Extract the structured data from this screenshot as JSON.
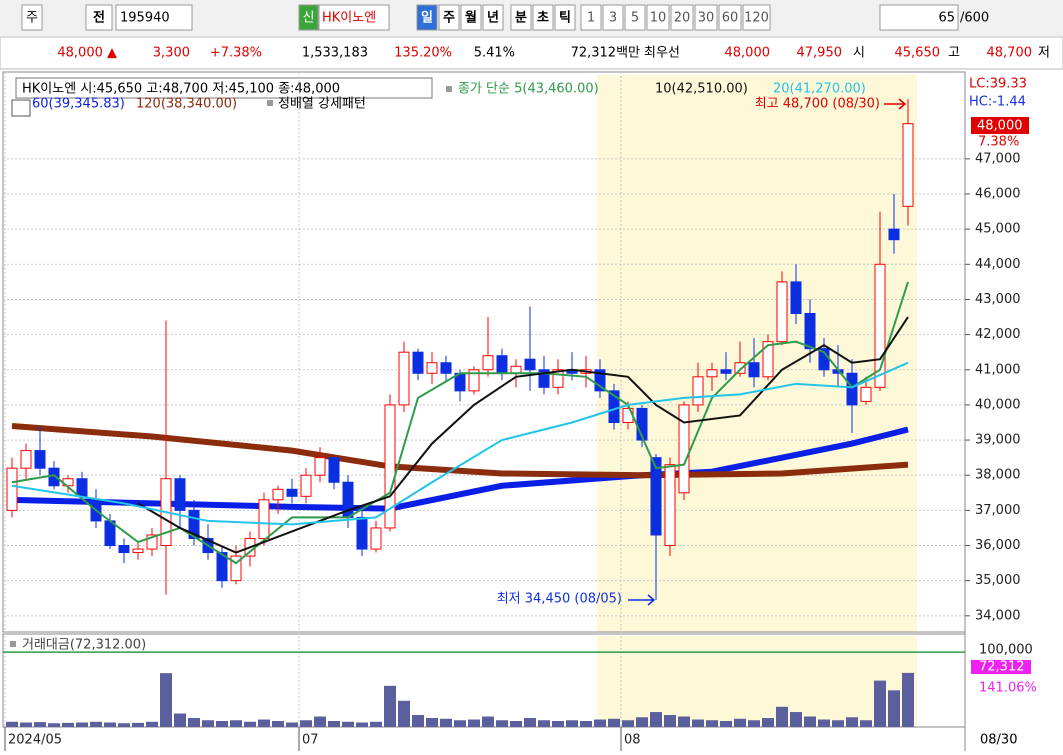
{
  "toolbar": {
    "market": "주",
    "prefix": "전",
    "code": "195940",
    "badge": "신",
    "name": "HK이노엔",
    "periods": [
      "일",
      "주",
      "월",
      "년",
      "분",
      "초",
      "틱"
    ],
    "intervals": [
      "1",
      "3",
      "5",
      "10",
      "20",
      "30",
      "60",
      "120"
    ],
    "count": "65",
    "max": "/600"
  },
  "quote": [
    "48,000 ▲",
    "3,300",
    "+7.38%",
    "1,533,183",
    "135.20%",
    "5.41%",
    "72,312백만",
    "최우선",
    "48,000",
    "47,950",
    "시",
    "45,650",
    "고",
    "48,700",
    "저"
  ],
  "chart_data": {
    "type": "candlestick",
    "info": "HK이노엔 시:45,650 고:48,700 저:45,100 종:48,000",
    "pattern": "정배열 강세패턴",
    "lc": "LC:39.33",
    "hc": "HC:-1.44",
    "last_price": "48,000",
    "last_change": "7.38%",
    "high_note": "최고 48,700 (08/30)",
    "low_note": "최저 34,450 (08/05)",
    "up_color": "#ff0000",
    "down_color": "#0b2fe0",
    "open": [
      37000,
      38200,
      38700,
      38200,
      37700,
      37900,
      37300,
      36700,
      36000,
      35800,
      35900,
      36000,
      37900,
      37000,
      36200,
      35800,
      35000,
      35700,
      36200,
      37300,
      37600,
      37400,
      38000,
      38500,
      37800,
      36800,
      35900,
      36500,
      40000,
      41500,
      40900,
      41200,
      40900,
      40400,
      41000,
      41400,
      40900,
      41300,
      41000,
      40500,
      41000,
      40900,
      41000,
      40400,
      39500,
      39900,
      38500,
      36000,
      37500,
      40000,
      40800,
      41000,
      40900,
      41200,
      40800,
      41800,
      43500,
      42600,
      41600,
      41000,
      40900,
      40100,
      40500,
      45000,
      45650
    ],
    "high": [
      38500,
      38900,
      39400,
      38400,
      38000,
      38100,
      37600,
      36900,
      36200,
      36100,
      36500,
      42400,
      38000,
      37300,
      36600,
      36000,
      36000,
      36400,
      37500,
      37700,
      37900,
      38200,
      38800,
      38500,
      38000,
      37000,
      36700,
      40300,
      41800,
      41600,
      41500,
      41400,
      41000,
      41100,
      42500,
      41600,
      41300,
      42800,
      41400,
      41300,
      41500,
      41400,
      41300,
      40600,
      40100,
      40000,
      38600,
      38500,
      40100,
      41200,
      41200,
      41500,
      41800,
      41900,
      42000,
      43800,
      44000,
      43000,
      41900,
      41700,
      41300,
      40800,
      45500,
      46000,
      48700
    ],
    "low": [
      36800,
      37900,
      38000,
      37600,
      37500,
      37300,
      36500,
      35900,
      35500,
      35600,
      35700,
      34600,
      36500,
      36000,
      35600,
      34800,
      34900,
      35400,
      36000,
      36900,
      37200,
      37200,
      37800,
      37600,
      36500,
      35700,
      35800,
      36400,
      39800,
      40700,
      40600,
      40700,
      40100,
      40300,
      40800,
      40700,
      40500,
      40400,
      40300,
      40300,
      40700,
      40500,
      40200,
      39300,
      39300,
      38800,
      34450,
      35700,
      37300,
      39800,
      40400,
      40700,
      40800,
      40500,
      40700,
      41700,
      42300,
      41200,
      40800,
      40500,
      39200,
      40000,
      40400,
      44300,
      45100
    ],
    "close": [
      38200,
      38700,
      38200,
      37700,
      37900,
      37400,
      36700,
      36000,
      35800,
      35900,
      36300,
      37900,
      37000,
      36200,
      35800,
      35000,
      35700,
      36200,
      37300,
      37600,
      37400,
      38000,
      38500,
      37800,
      36800,
      35900,
      36500,
      40000,
      41500,
      40900,
      41200,
      40900,
      40400,
      41000,
      41400,
      40900,
      41100,
      41000,
      40500,
      41000,
      40900,
      41000,
      40400,
      39500,
      39900,
      39000,
      36300,
      38300,
      40000,
      40800,
      41000,
      40900,
      41200,
      40800,
      41800,
      43500,
      42600,
      41600,
      41000,
      40900,
      40000,
      40500,
      44000,
      44700,
      48000
    ],
    "ma": [
      {
        "name": "종가 단순 5(43,460.00)",
        "color": "#2e9b4a",
        "x": [
          0,
          3,
          6,
          9,
          12,
          16,
          20,
          24,
          27,
          29,
          32,
          35,
          38,
          41,
          44,
          46,
          48,
          50,
          52,
          54,
          56,
          58,
          60,
          62,
          64
        ],
        "values": [
          37800,
          38000,
          37000,
          36100,
          36500,
          35500,
          36800,
          36800,
          37500,
          40200,
          40900,
          40900,
          40900,
          40800,
          40000,
          38200,
          38300,
          40200,
          41000,
          41700,
          41800,
          41500,
          40500,
          41000,
          43500
        ]
      },
      {
        "name": "10(42,510.00)",
        "color": "#111111",
        "x": [
          9,
          12,
          16,
          20,
          24,
          27,
          30,
          33,
          36,
          40,
          44,
          46,
          48,
          52,
          55,
          58,
          60,
          62,
          64
        ],
        "values": [
          37200,
          36500,
          35800,
          36400,
          37000,
          37400,
          38900,
          40000,
          40800,
          41000,
          40800,
          40000,
          39500,
          39700,
          41000,
          41700,
          41200,
          41300,
          42500
        ]
      },
      {
        "name": "20(41,270.00)",
        "color": "#22c4e8",
        "x": [
          0,
          8,
          14,
          20,
          26,
          30,
          35,
          40,
          44,
          48,
          52,
          56,
          60,
          64
        ],
        "values": [
          37700,
          37200,
          36700,
          36600,
          36800,
          37800,
          39000,
          39500,
          40000,
          40200,
          40300,
          40600,
          40500,
          41200
        ]
      },
      {
        "name": "60(39,345.83)",
        "color": "#0a1fe6",
        "x": [
          0,
          10,
          20,
          27,
          35,
          45,
          50,
          55,
          60,
          64
        ],
        "values": [
          37300,
          37200,
          37100,
          37050,
          37700,
          38000,
          38100,
          38500,
          38900,
          39300
        ]
      },
      {
        "name": "120(38,340.00)",
        "color": "#8b2c0c",
        "x": [
          0,
          10,
          20,
          27,
          35,
          45,
          55,
          64
        ],
        "values": [
          39400,
          39100,
          38700,
          38250,
          38050,
          38000,
          38050,
          38300
        ]
      }
    ],
    "ylim": [
      33540,
      49385
    ],
    "yticks": [
      {
        "value": 34000,
        "label": "34,000"
      },
      {
        "value": 35000,
        "label": "35,000"
      },
      {
        "value": 36000,
        "label": "36,000"
      },
      {
        "value": 37000,
        "label": "37,000"
      },
      {
        "value": 38000,
        "label": "38,000"
      },
      {
        "value": 39000,
        "label": "39,000"
      },
      {
        "value": 40000,
        "label": "40,000"
      },
      {
        "value": 41000,
        "label": "41,000"
      },
      {
        "value": 42000,
        "label": "42,000"
      },
      {
        "value": 43000,
        "label": "43,000"
      },
      {
        "value": 44000,
        "label": "44,000"
      },
      {
        "value": 45000,
        "label": "45,000"
      },
      {
        "value": 46000,
        "label": "46,000"
      },
      {
        "value": 47000,
        "label": "47,000"
      }
    ],
    "x_labels": [
      {
        "value": 0,
        "label": "2024/05"
      },
      {
        "value": 21,
        "label": "07"
      },
      {
        "value": 44,
        "label": "08"
      }
    ],
    "last_date": "08/30",
    "volume": {
      "name": "거래대금(72,312.00)",
      "color": "#5b5f9e",
      "last": "72,312",
      "ratio": "141.06%",
      "values": [
        7000,
        6000,
        6500,
        5000,
        5500,
        6000,
        7000,
        6000,
        5000,
        5500,
        7000,
        72000,
        18000,
        12000,
        9000,
        8000,
        9000,
        7000,
        10000,
        8000,
        6000,
        9000,
        14000,
        8000,
        7000,
        6000,
        7000,
        55000,
        35000,
        16000,
        12000,
        11000,
        9000,
        10000,
        14000,
        9000,
        8000,
        12000,
        9000,
        8000,
        9000,
        8000,
        10000,
        11000,
        9000,
        13000,
        20000,
        16000,
        14000,
        10000,
        9000,
        8000,
        11000,
        9000,
        12000,
        27000,
        20000,
        14000,
        10000,
        9000,
        13000,
        9000,
        62000,
        49000,
        72312
      ],
      "ylim": [
        0,
        121600
      ],
      "yticks": [
        {
          "value": 100000,
          "label": "100,000"
        }
      ]
    }
  }
}
